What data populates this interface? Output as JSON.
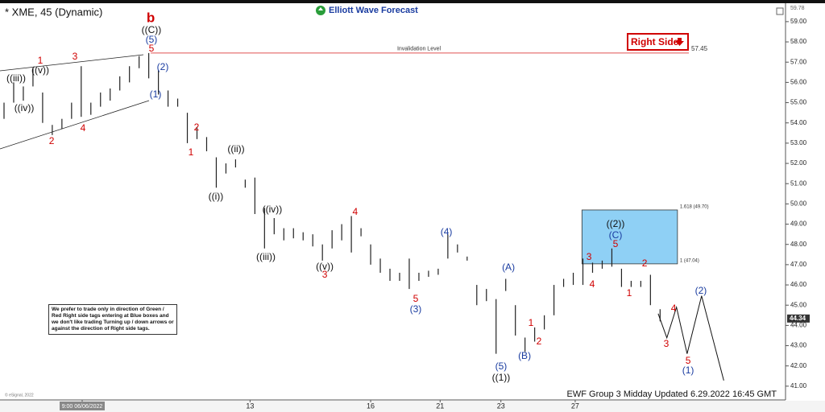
{
  "chart_data": {
    "type": "ohlc",
    "title": "* XME, 45 (Dynamic)",
    "brand": "Elliott Wave Forecast",
    "footer": "EWF Group 3 Midday Updated 6.29.2022 16:45 GMT",
    "copyright": "© eSignal, 2022",
    "note": "We prefer to trade only in direction of Green / Red Right side tags entering at Blue boxes and we don't like trading Turning up / down arrows or against the direction of Right side tags.",
    "tag": {
      "label": "Right Side",
      "color": "#d00000"
    },
    "color": "#222222",
    "xlim": [
      0,
      81
    ],
    "ylim": [
      40.4,
      59.83
    ],
    "xticks": [
      {
        "value": 8.1,
        "label": "9:00 06/06/2022"
      },
      {
        "value": 25.5,
        "label": "13"
      },
      {
        "value": 38,
        "label": "16"
      },
      {
        "value": 45.2,
        "label": "21"
      },
      {
        "value": 51.5,
        "label": "23"
      },
      {
        "value": 59.2,
        "label": "27"
      }
    ],
    "yticks": [
      {
        "value": 41,
        "label": "41.00"
      },
      {
        "value": 42,
        "label": "42.00"
      },
      {
        "value": 43,
        "label": "43.00"
      },
      {
        "value": 44,
        "label": "44.00"
      },
      {
        "value": 45,
        "label": "45.00"
      },
      {
        "value": 46,
        "label": "46.00"
      },
      {
        "value": 47,
        "label": "47.00"
      },
      {
        "value": 48,
        "label": "48.00"
      },
      {
        "value": 49,
        "label": "49.00"
      },
      {
        "value": 50,
        "label": "50.00"
      },
      {
        "value": 51,
        "label": "51.00"
      },
      {
        "value": 52,
        "label": "52.00"
      },
      {
        "value": 53,
        "label": "53.00"
      },
      {
        "value": 54,
        "label": "54.00"
      },
      {
        "value": 55,
        "label": "55.00"
      },
      {
        "value": 56,
        "label": "56.00"
      },
      {
        "value": 57,
        "label": "57.00"
      },
      {
        "value": 58,
        "label": "58.00"
      },
      {
        "value": 59,
        "label": "59.00"
      }
    ],
    "top_value": 59.78,
    "last_price": 44.34,
    "high": [
      55.0,
      56.0,
      55.8,
      56.7,
      55.5,
      53.9,
      54.2,
      55.0,
      56.8,
      55.0,
      55.5,
      55.7,
      56.3,
      56.8,
      57.3,
      57.45,
      56.6,
      55.6,
      55.2,
      54.5,
      53.8,
      53.3,
      52.3,
      52.0,
      52.2,
      51.2,
      51.3,
      49.8,
      49.3,
      48.8,
      48.8,
      48.6,
      48.5,
      48.0,
      48.7,
      49.0,
      49.4,
      48.8,
      48.0,
      47.3,
      46.8,
      46.6,
      47.3,
      46.6,
      46.7,
      46.8,
      48.5,
      48.0,
      47.4,
      46.0,
      45.8,
      45.3,
      46.3,
      45.0,
      43.4,
      43.9,
      44.5,
      46.0,
      46.3,
      46.6,
      47.3,
      47.1,
      47.2,
      47.8,
      46.8,
      46.2,
      46.2,
      46.5,
      44.8
    ],
    "low": [
      54.2,
      55.0,
      55.1,
      55.8,
      54.0,
      53.4,
      53.7,
      54.2,
      54.3,
      54.4,
      54.8,
      55.1,
      55.6,
      56.0,
      56.7,
      56.2,
      55.4,
      54.8,
      54.8,
      53.0,
      53.2,
      52.6,
      50.8,
      51.5,
      51.8,
      50.8,
      49.5,
      47.8,
      48.5,
      48.2,
      48.3,
      48.2,
      47.9,
      47.2,
      47.8,
      48.2,
      47.6,
      48.4,
      47.0,
      46.6,
      46.2,
      46.2,
      45.8,
      46.2,
      46.4,
      46.5,
      47.3,
      47.6,
      47.2,
      45.0,
      45.2,
      42.6,
      45.7,
      43.5,
      42.7,
      43.2,
      43.8,
      44.5,
      45.9,
      46.0,
      46.0,
      46.6,
      46.8,
      46.9,
      45.9,
      45.9,
      45.9,
      45.0,
      44.2
    ],
    "projection": {
      "color": "#111111",
      "x": [
        67.8,
        68.7,
        69.7,
        70.8,
        72.3,
        74.6
      ],
      "values": [
        44.58,
        43.39,
        44.9,
        42.6,
        45.46,
        41.28
      ]
    },
    "invalidation": {
      "label": "Invalidation Level",
      "value": 57.45,
      "color": "#e05050",
      "x_start": 15.2
    },
    "blue_box": {
      "color": "#8fd0f5",
      "x": [
        59.9,
        69.8
      ],
      "levels": [
        {
          "value": 49.7,
          "label": "1.618 (49.70)"
        },
        {
          "value": 47.04,
          "label": "1 (47.04)"
        }
      ]
    },
    "annotations": [
      {
        "text": "((iii))",
        "x": 1.25,
        "y": 56.18,
        "color": "#111111"
      },
      {
        "text": "((v))",
        "x": 3.76,
        "y": 56.58,
        "color": "#111111"
      },
      {
        "text": "1",
        "x": 3.76,
        "y": 57.05,
        "color": "#d00000"
      },
      {
        "text": "3",
        "x": 7.35,
        "y": 57.25,
        "color": "#d00000"
      },
      {
        "text": "((iv))",
        "x": 2.09,
        "y": 54.71,
        "color": "#111111"
      },
      {
        "text": "2",
        "x": 4.93,
        "y": 53.08,
        "color": "#d00000"
      },
      {
        "text": "4",
        "x": 8.18,
        "y": 53.72,
        "color": "#d00000"
      },
      {
        "text": "b",
        "x": 15.2,
        "y": 59.16,
        "color": "#d00000"
      },
      {
        "text": "((C))",
        "x": 15.28,
        "y": 58.56,
        "color": "#111111"
      },
      {
        "text": "(5)",
        "x": 15.28,
        "y": 58.09,
        "color": "#1a3ca0"
      },
      {
        "text": "5",
        "x": 15.28,
        "y": 57.65,
        "color": "#d00000"
      },
      {
        "text": "(2)",
        "x": 16.45,
        "y": 56.74,
        "color": "#1a3ca0"
      },
      {
        "text": "(1)",
        "x": 15.7,
        "y": 55.38,
        "color": "#1a3ca0"
      },
      {
        "text": "2",
        "x": 19.96,
        "y": 53.76,
        "color": "#d00000"
      },
      {
        "text": "1",
        "x": 19.37,
        "y": 52.52,
        "color": "#d00000"
      },
      {
        "text": "((ii))",
        "x": 24.05,
        "y": 52.68,
        "color": "#111111"
      },
      {
        "text": "((i))",
        "x": 21.96,
        "y": 50.34,
        "color": "#111111"
      },
      {
        "text": "((iv))",
        "x": 27.8,
        "y": 49.7,
        "color": "#111111"
      },
      {
        "text": "((iii))",
        "x": 27.14,
        "y": 47.36,
        "color": "#111111"
      },
      {
        "text": "4",
        "x": 36.4,
        "y": 49.58,
        "color": "#d00000"
      },
      {
        "text": "((v))",
        "x": 33.24,
        "y": 46.88,
        "color": "#111111"
      },
      {
        "text": "3",
        "x": 33.24,
        "y": 46.48,
        "color": "#d00000"
      },
      {
        "text": "(4)",
        "x": 45.85,
        "y": 48.59,
        "color": "#1a3ca0"
      },
      {
        "text": "5",
        "x": 42.67,
        "y": 45.29,
        "color": "#d00000"
      },
      {
        "text": "(3)",
        "x": 42.67,
        "y": 44.78,
        "color": "#1a3ca0"
      },
      {
        "text": "(A)",
        "x": 52.28,
        "y": 46.84,
        "color": "#1a3ca0"
      },
      {
        "text": "1",
        "x": 54.61,
        "y": 44.1,
        "color": "#d00000"
      },
      {
        "text": "2",
        "x": 55.45,
        "y": 43.19,
        "color": "#d00000"
      },
      {
        "text": "(B)",
        "x": 53.95,
        "y": 42.47,
        "color": "#1a3ca0"
      },
      {
        "text": "(5)",
        "x": 51.52,
        "y": 41.96,
        "color": "#1a3ca0"
      },
      {
        "text": "((1))",
        "x": 51.52,
        "y": 41.4,
        "color": "#111111"
      },
      {
        "text": "((2))",
        "x": 63.38,
        "y": 48.99,
        "color": "#111111"
      },
      {
        "text": "(C)",
        "x": 63.38,
        "y": 48.43,
        "color": "#1a3ca0"
      },
      {
        "text": "5",
        "x": 63.38,
        "y": 47.99,
        "color": "#d00000"
      },
      {
        "text": "3",
        "x": 60.63,
        "y": 47.36,
        "color": "#d00000"
      },
      {
        "text": "4",
        "x": 60.96,
        "y": 46.0,
        "color": "#d00000"
      },
      {
        "text": "2",
        "x": 66.39,
        "y": 47.04,
        "color": "#d00000"
      },
      {
        "text": "1",
        "x": 64.8,
        "y": 45.57,
        "color": "#d00000"
      },
      {
        "text": "4",
        "x": 69.4,
        "y": 44.82,
        "color": "#d00000"
      },
      {
        "text": "3",
        "x": 68.64,
        "y": 43.07,
        "color": "#d00000"
      },
      {
        "text": "(2)",
        "x": 72.23,
        "y": 45.69,
        "color": "#1a3ca0"
      },
      {
        "text": "5",
        "x": 70.9,
        "y": 42.23,
        "color": "#d00000"
      },
      {
        "text": "(1)",
        "x": 70.9,
        "y": 41.76,
        "color": "#1a3ca0"
      }
    ]
  }
}
